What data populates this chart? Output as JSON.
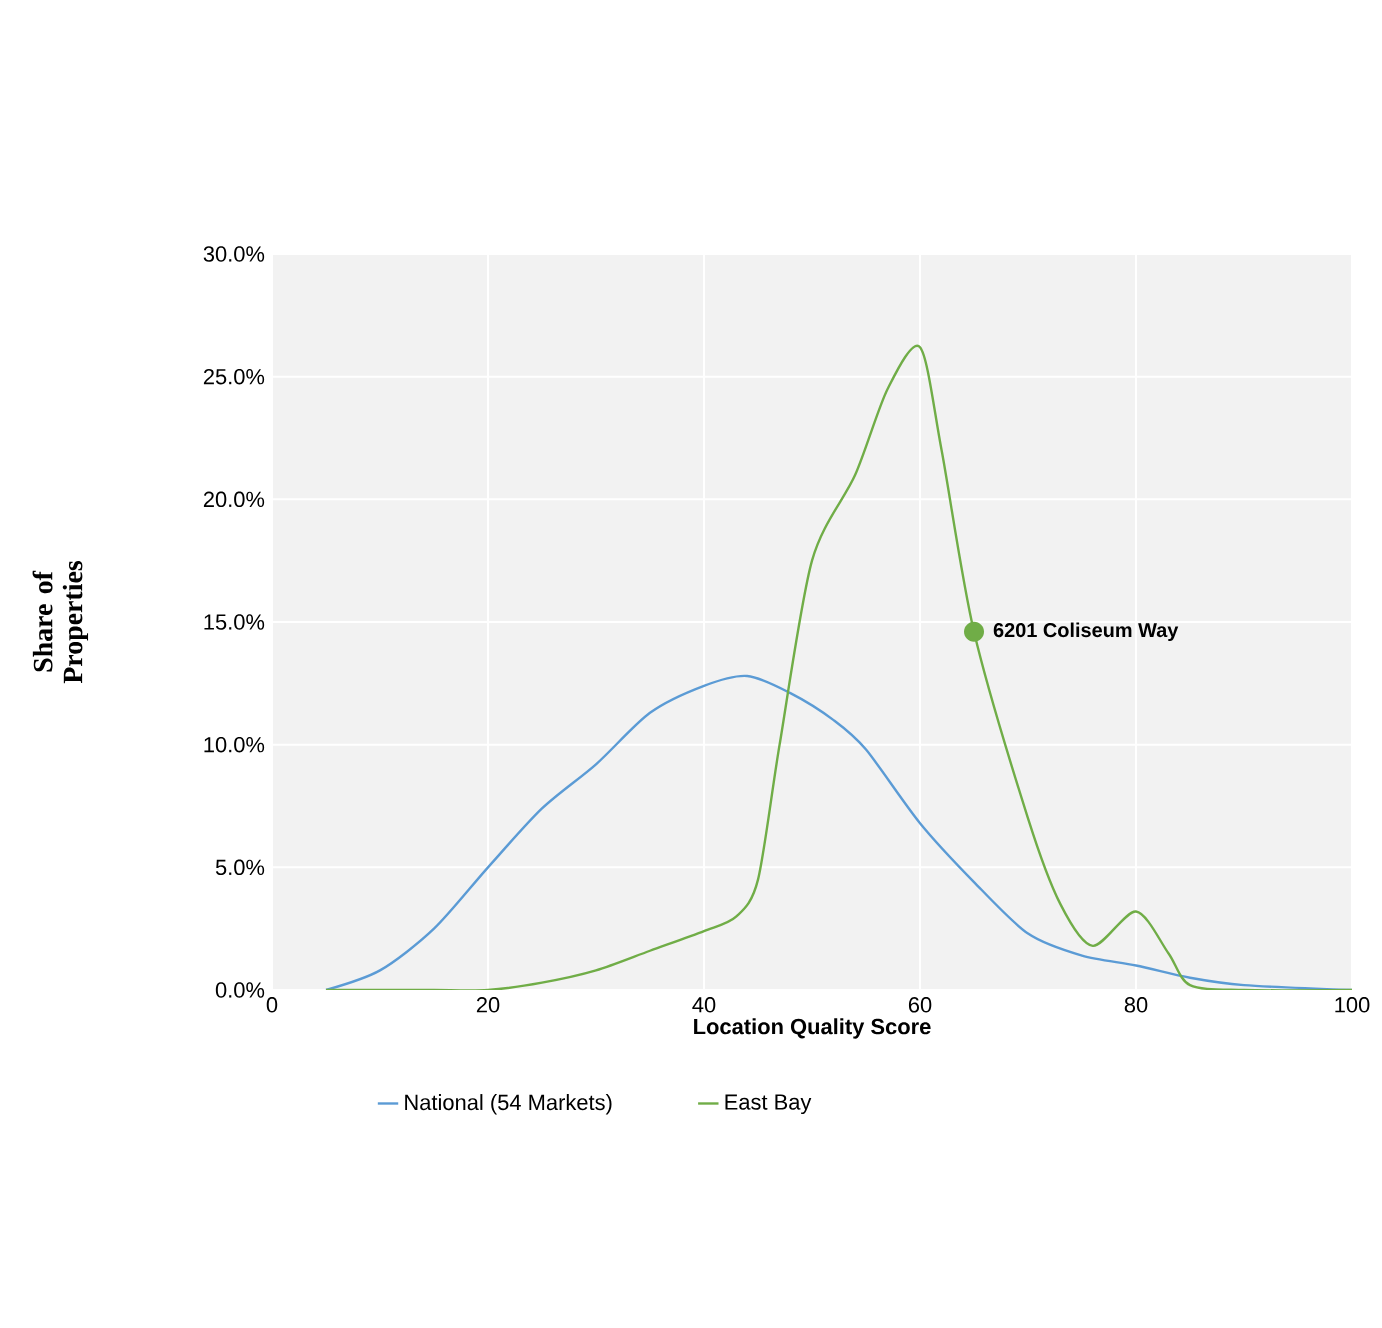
{
  "chart_data": {
    "type": "line",
    "xlabel": "Location Quality Score",
    "ylabel": "Share of Properties",
    "xlim": [
      0,
      100
    ],
    "ylim": [
      0,
      30
    ],
    "xticks": [
      0,
      20,
      40,
      60,
      80,
      100
    ],
    "yticks": [
      {
        "value": 0,
        "label": "0.0%"
      },
      {
        "value": 5,
        "label": "5.0%"
      },
      {
        "value": 10,
        "label": "10.0%"
      },
      {
        "value": 15,
        "label": "15.0%"
      },
      {
        "value": 20,
        "label": "20.0%"
      },
      {
        "value": 25,
        "label": "25.0%"
      },
      {
        "value": 30,
        "label": "30.0%"
      }
    ],
    "grid": true,
    "legend": "bottom",
    "marker": "none",
    "line_style": "solid",
    "series": [
      {
        "name": "National (54 Markets)",
        "color": "#5b9bd5",
        "x": [
          5,
          10,
          15,
          20,
          25,
          30,
          35,
          40,
          44,
          48,
          52,
          55,
          60,
          65,
          70,
          75,
          80,
          85,
          90,
          100
        ],
        "values": [
          0,
          0.8,
          2.5,
          5.0,
          7.4,
          9.2,
          11.3,
          12.4,
          12.8,
          12.1,
          11.0,
          9.8,
          6.8,
          4.4,
          2.3,
          1.4,
          1.0,
          0.5,
          0.2,
          0
        ]
      },
      {
        "name": "East Bay",
        "color": "#70ad47",
        "x": [
          5,
          10,
          15,
          20,
          25,
          30,
          35,
          40,
          43,
          45,
          47,
          50,
          54,
          57,
          60,
          62,
          65,
          70,
          73,
          76,
          80,
          83,
          85,
          90,
          100
        ],
        "values": [
          0,
          0,
          0,
          0,
          0.3,
          0.8,
          1.6,
          2.4,
          3.0,
          4.5,
          10.0,
          17.5,
          21.0,
          24.5,
          26.2,
          22.0,
          14.6,
          7.0,
          3.5,
          1.8,
          3.2,
          1.5,
          0.2,
          0,
          0
        ]
      }
    ],
    "annotations": [
      {
        "text": "6201 Coliseum Way",
        "x": 65,
        "y": 14.6
      }
    ]
  }
}
